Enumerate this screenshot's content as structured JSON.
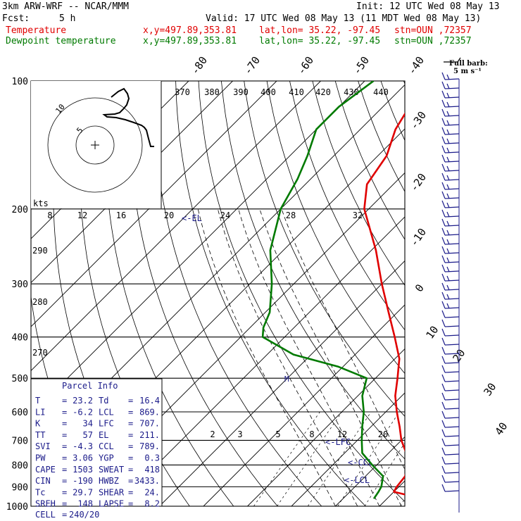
{
  "header": {
    "model": "3km ARW-WRF -- NCAR/MMM",
    "init": "Init: 12 UTC Wed 08 May 13",
    "fcst_label": "Fcst:",
    "fcst_value": "5 h",
    "valid": "Valid: 17 UTC Wed 08 May 13 (11 MDT Wed 08 May 13)",
    "temp_label": "Temperature",
    "temp_xy": "x,y=497.89,353.81",
    "temp_latlon": "lat,lon= 35.22, -97.45",
    "temp_stn": "stn=OUN ,72357",
    "dew_label": "Dewpoint temperature",
    "dew_xy": "x,y=497.89,353.81",
    "dew_latlon": "lat,lon= 35.22, -97.45",
    "dew_stn": "stn=OUN ,72357"
  },
  "wind_key": {
    "line1": "Full barb:",
    "line2": "5 m s⁻¹"
  },
  "hodograph": {
    "units": "kts",
    "rings": [
      "5",
      "10"
    ],
    "speed_ticks": [
      "8",
      "12",
      "16",
      "20",
      "24",
      "28",
      "32"
    ]
  },
  "parcel": {
    "title": "Parcel Info",
    "rows": [
      {
        "l": "T",
        "lv": "23.2",
        "r": "Td",
        "rv": "16.4"
      },
      {
        "l": "LI",
        "lv": "-6.2",
        "r": "LCL",
        "rv": "869."
      },
      {
        "l": "K",
        "lv": "34",
        "r": "LFC",
        "rv": "707."
      },
      {
        "l": "TT",
        "lv": "57",
        "r": "EL",
        "rv": "211."
      },
      {
        "l": "SVI",
        "lv": "-4.3",
        "r": "CCL",
        "rv": "789."
      },
      {
        "l": "PW",
        "lv": "3.06",
        "r": "YGP",
        "rv": "0.3"
      },
      {
        "l": "CAPE",
        "lv": "1503",
        "r": "SWEAT",
        "rv": "418"
      },
      {
        "l": "CIN",
        "lv": "-190",
        "r": "HWBZ",
        "rv": "3433."
      },
      {
        "l": "Tc",
        "lv": "29.7",
        "r": "SHEAR",
        "rv": "24."
      },
      {
        "l": "SREH",
        "lv": "148",
        "r": "LAPSE",
        "rv": "8.2"
      }
    ],
    "cell_label": "CELL",
    "cell_value": "240/20"
  },
  "chart_data": {
    "type": "line",
    "title": "",
    "ylabel": "",
    "y_axis": "pressure (hPa), log scale",
    "ylim": [
      1000,
      100
    ],
    "pressure_labels": [
      100,
      200,
      300,
      400,
      500,
      600,
      700,
      800,
      900,
      1000
    ],
    "isotherm_labels": [
      "-80",
      "-70",
      "-60",
      "-50",
      "-40",
      "-30",
      "-20",
      "-10",
      "0",
      "10",
      "20",
      "30",
      "40"
    ],
    "theta_labels": [
      "370",
      "380",
      "390",
      "400",
      "410",
      "420",
      "430",
      "440"
    ],
    "theta_left_labels": [
      "290",
      "280",
      "270"
    ],
    "mixing_ratio_labels": [
      "2",
      "3",
      "5",
      "8",
      "12",
      "20"
    ],
    "level_markers": [
      "<-EL",
      "<-LFC",
      "<-CCL",
      "<-LCL"
    ],
    "series": [
      {
        "name": "Temperature",
        "color": "#e00000",
        "points": [
          [
            960,
            28
          ],
          [
            925,
            20
          ],
          [
            900,
            19.5
          ],
          [
            850,
            19
          ],
          [
            800,
            17
          ],
          [
            750,
            14
          ],
          [
            700,
            10
          ],
          [
            650,
            6.5
          ],
          [
            600,
            2.5
          ],
          [
            550,
            -1.5
          ],
          [
            500,
            -5
          ],
          [
            450,
            -9
          ],
          [
            400,
            -15
          ],
          [
            350,
            -22
          ],
          [
            300,
            -30
          ],
          [
            250,
            -39
          ],
          [
            200,
            -51
          ],
          [
            175,
            -56
          ],
          [
            150,
            -58
          ],
          [
            130,
            -62
          ],
          [
            115,
            -64
          ],
          [
            100,
            -66
          ]
        ]
      },
      {
        "name": "Dewpoint temperature",
        "color": "#007a00",
        "points": [
          [
            960,
            17
          ],
          [
            925,
            16.5
          ],
          [
            900,
            16
          ],
          [
            850,
            14
          ],
          [
            800,
            9
          ],
          [
            750,
            4
          ],
          [
            700,
            1
          ],
          [
            650,
            -2
          ],
          [
            600,
            -5
          ],
          [
            550,
            -9
          ],
          [
            500,
            -12
          ],
          [
            470,
            -21
          ],
          [
            440,
            -34
          ],
          [
            400,
            -45
          ],
          [
            380,
            -47
          ],
          [
            350,
            -49
          ],
          [
            300,
            -55
          ],
          [
            250,
            -63
          ],
          [
            200,
            -70
          ],
          [
            170,
            -73
          ],
          [
            150,
            -76
          ],
          [
            130,
            -80
          ],
          [
            115,
            -80
          ],
          [
            100,
            -78
          ]
        ]
      }
    ],
    "wind_barbs": "barbs at right margin, 100-1000 hPa"
  }
}
